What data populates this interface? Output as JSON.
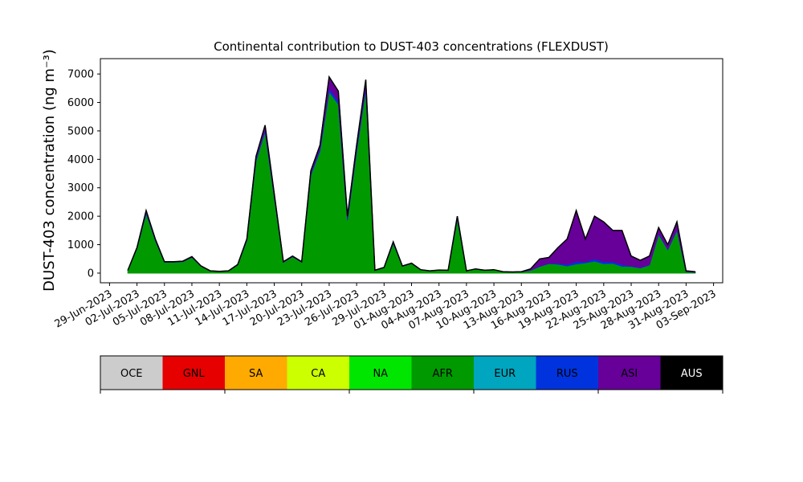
{
  "chart_data": {
    "type": "stacked_area",
    "title": "Continental contribution to DUST-403 concentrations (FLEXDUST)",
    "y_label": "DUST-403 concentration (ng m⁻³)",
    "x": [
      "2023-07-01",
      "2023-07-02",
      "2023-07-03",
      "2023-07-04",
      "2023-07-05",
      "2023-07-06",
      "2023-07-07",
      "2023-07-08",
      "2023-07-09",
      "2023-07-10",
      "2023-07-11",
      "2023-07-12",
      "2023-07-13",
      "2023-07-14",
      "2023-07-15",
      "2023-07-16",
      "2023-07-17",
      "2023-07-18",
      "2023-07-19",
      "2023-07-20",
      "2023-07-21",
      "2023-07-22",
      "2023-07-23",
      "2023-07-24",
      "2023-07-25",
      "2023-07-26",
      "2023-07-27",
      "2023-07-28",
      "2023-07-29",
      "2023-07-30",
      "2023-07-31",
      "2023-08-01",
      "2023-08-02",
      "2023-08-03",
      "2023-08-04",
      "2023-08-05",
      "2023-08-06",
      "2023-08-07",
      "2023-08-08",
      "2023-08-09",
      "2023-08-10",
      "2023-08-11",
      "2023-08-12",
      "2023-08-13",
      "2023-08-14",
      "2023-08-15",
      "2023-08-16",
      "2023-08-17",
      "2023-08-18",
      "2023-08-19",
      "2023-08-20",
      "2023-08-21",
      "2023-08-22",
      "2023-08-23",
      "2023-08-24",
      "2023-08-25",
      "2023-08-26",
      "2023-08-27",
      "2023-08-28",
      "2023-08-29",
      "2023-08-30",
      "2023-08-31",
      "2023-09-01"
    ],
    "xlim": [
      "2023-06-28",
      "2023-09-04"
    ],
    "xticks": [
      {
        "value": "2023-06-29",
        "label": "29-Jun-2023"
      },
      {
        "value": "2023-07-02",
        "label": "02-Jul-2023"
      },
      {
        "value": "2023-07-05",
        "label": "05-Jul-2023"
      },
      {
        "value": "2023-07-08",
        "label": "08-Jul-2023"
      },
      {
        "value": "2023-07-11",
        "label": "11-Jul-2023"
      },
      {
        "value": "2023-07-14",
        "label": "14-Jul-2023"
      },
      {
        "value": "2023-07-17",
        "label": "17-Jul-2023"
      },
      {
        "value": "2023-07-20",
        "label": "20-Jul-2023"
      },
      {
        "value": "2023-07-23",
        "label": "23-Jul-2023"
      },
      {
        "value": "2023-07-26",
        "label": "26-Jul-2023"
      },
      {
        "value": "2023-07-29",
        "label": "29-Jul-2023"
      },
      {
        "value": "2023-08-01",
        "label": "01-Aug-2023"
      },
      {
        "value": "2023-08-04",
        "label": "04-Aug-2023"
      },
      {
        "value": "2023-08-07",
        "label": "07-Aug-2023"
      },
      {
        "value": "2023-08-10",
        "label": "10-Aug-2023"
      },
      {
        "value": "2023-08-13",
        "label": "13-Aug-2023"
      },
      {
        "value": "2023-08-16",
        "label": "16-Aug-2023"
      },
      {
        "value": "2023-08-19",
        "label": "19-Aug-2023"
      },
      {
        "value": "2023-08-22",
        "label": "22-Aug-2023"
      },
      {
        "value": "2023-08-25",
        "label": "25-Aug-2023"
      },
      {
        "value": "2023-08-28",
        "label": "28-Aug-2023"
      },
      {
        "value": "2023-08-31",
        "label": "31-Aug-2023"
      },
      {
        "value": "2023-09-03",
        "label": "03-Sep-2023"
      }
    ],
    "ylim": [
      -340,
      7540
    ],
    "yticks": [
      0,
      1000,
      2000,
      3000,
      4000,
      5000,
      6000,
      7000
    ],
    "series": [
      {
        "name": "OCE",
        "color": "#cccccc",
        "values": [
          0,
          0,
          0,
          0,
          0,
          0,
          0,
          0,
          0,
          0,
          0,
          0,
          0,
          0,
          0,
          0,
          0,
          0,
          0,
          0,
          0,
          0,
          0,
          0,
          0,
          0,
          0,
          0,
          0,
          0,
          0,
          0,
          0,
          0,
          0,
          0,
          0,
          0,
          0,
          0,
          0,
          0,
          0,
          0,
          0,
          0,
          0,
          0,
          0,
          0,
          0,
          0,
          0,
          0,
          0,
          0,
          0,
          0,
          0,
          0,
          0,
          0,
          0
        ]
      },
      {
        "name": "GNL",
        "color": "#e60000",
        "values": [
          0,
          0,
          0,
          0,
          0,
          0,
          0,
          0,
          0,
          0,
          0,
          0,
          0,
          0,
          0,
          0,
          0,
          0,
          0,
          0,
          0,
          0,
          0,
          0,
          0,
          0,
          0,
          0,
          0,
          0,
          0,
          0,
          0,
          0,
          0,
          0,
          0,
          0,
          0,
          0,
          0,
          0,
          0,
          0,
          0,
          0,
          0,
          0,
          0,
          0,
          0,
          0,
          0,
          0,
          0,
          0,
          0,
          0,
          0,
          0,
          0,
          0,
          0
        ]
      },
      {
        "name": "SA",
        "color": "#ffaa00",
        "values": [
          0,
          0,
          0,
          0,
          0,
          0,
          0,
          0,
          0,
          0,
          0,
          0,
          0,
          0,
          0,
          0,
          0,
          0,
          0,
          0,
          0,
          0,
          0,
          0,
          0,
          0,
          0,
          0,
          0,
          0,
          0,
          0,
          0,
          0,
          0,
          0,
          0,
          0,
          0,
          0,
          0,
          0,
          0,
          0,
          0,
          0,
          0,
          0,
          0,
          0,
          0,
          0,
          0,
          0,
          0,
          0,
          0,
          0,
          0,
          0,
          0,
          0,
          0
        ]
      },
      {
        "name": "CA",
        "color": "#ccff00",
        "values": [
          0,
          0,
          0,
          0,
          0,
          0,
          0,
          0,
          0,
          0,
          0,
          0,
          0,
          0,
          0,
          0,
          0,
          0,
          0,
          0,
          0,
          0,
          0,
          0,
          0,
          0,
          0,
          0,
          0,
          0,
          0,
          0,
          0,
          0,
          0,
          0,
          0,
          0,
          0,
          0,
          0,
          0,
          0,
          0,
          0,
          0,
          0,
          0,
          0,
          0,
          0,
          0,
          0,
          0,
          0,
          0,
          0,
          0,
          0,
          0,
          0,
          0,
          0
        ]
      },
      {
        "name": "NA",
        "color": "#00e600",
        "values": [
          0,
          0,
          0,
          0,
          0,
          0,
          0,
          0,
          0,
          0,
          0,
          0,
          0,
          0,
          0,
          0,
          0,
          0,
          0,
          0,
          0,
          0,
          0,
          0,
          0,
          0,
          0,
          0,
          0,
          0,
          0,
          0,
          0,
          0,
          0,
          0,
          0,
          0,
          0,
          0,
          0,
          0,
          0,
          0,
          0,
          0,
          0,
          0,
          0,
          0,
          0,
          0,
          0,
          0,
          0,
          0,
          0,
          0,
          0,
          0,
          0,
          0,
          0
        ]
      },
      {
        "name": "AFR",
        "color": "#009900",
        "values": [
          96,
          865,
          2100,
          1150,
          382,
          382,
          402,
          555,
          240,
          77,
          57,
          77,
          287,
          1150,
          3940,
          4970,
          2680,
          382,
          575,
          382,
          3450,
          4300,
          6380,
          5940,
          1860,
          4270,
          6450,
          95,
          192,
          1050,
          239,
          336,
          115,
          77,
          105,
          95,
          1910,
          77,
          143,
          95,
          115,
          48,
          38,
          48,
          95,
          230,
          330,
          310,
          250,
          320,
          360,
          420,
          330,
          340,
          240,
          230,
          180,
          280,
          1360,
          820,
          1500,
          45,
          27
        ]
      },
      {
        "name": "EUR",
        "color": "#00a5bf",
        "values": [
          0,
          0,
          0,
          0,
          0,
          0,
          0,
          0,
          0,
          0,
          0,
          0,
          0,
          0,
          0,
          0,
          0,
          0,
          0,
          0,
          0,
          0,
          0,
          0,
          0,
          0,
          0,
          0,
          0,
          0,
          0,
          0,
          0,
          0,
          0,
          0,
          0,
          0,
          0,
          0,
          0,
          0,
          0,
          0,
          0,
          0,
          0,
          0,
          0,
          0,
          0,
          0,
          0,
          0,
          0,
          0,
          0,
          0,
          0,
          0,
          0,
          0,
          0
        ]
      },
      {
        "name": "RUS",
        "color": "#0033dd",
        "values": [
          2,
          15,
          40,
          20,
          8,
          8,
          8,
          10,
          5,
          1,
          1,
          1,
          5,
          20,
          60,
          80,
          40,
          8,
          10,
          8,
          60,
          80,
          120,
          110,
          60,
          80,
          100,
          2,
          3,
          20,
          5,
          6,
          2,
          1,
          2,
          2,
          30,
          1,
          3,
          2,
          2,
          1,
          1,
          1,
          5,
          20,
          20,
          40,
          50,
          80,
          40,
          80,
          70,
          60,
          60,
          20,
          20,
          20,
          40,
          30,
          50,
          5,
          3
        ]
      },
      {
        "name": "ASI",
        "color": "#660099",
        "values": [
          2,
          20,
          60,
          30,
          10,
          10,
          10,
          15,
          5,
          2,
          2,
          2,
          8,
          30,
          100,
          150,
          80,
          10,
          15,
          10,
          90,
          120,
          400,
          350,
          80,
          150,
          250,
          3,
          5,
          30,
          6,
          8,
          3,
          2,
          3,
          3,
          60,
          2,
          4,
          3,
          3,
          1,
          1,
          1,
          50,
          250,
          200,
          550,
          900,
          1800,
          800,
          1500,
          1400,
          1100,
          1200,
          350,
          250,
          300,
          200,
          150,
          250,
          30,
          20
        ]
      },
      {
        "name": "AUS",
        "color": "#000000",
        "values": [
          0,
          0,
          0,
          0,
          0,
          0,
          0,
          0,
          0,
          0,
          0,
          0,
          0,
          0,
          0,
          0,
          0,
          0,
          0,
          0,
          0,
          0,
          0,
          0,
          0,
          0,
          0,
          0,
          0,
          0,
          0,
          0,
          0,
          0,
          0,
          0,
          0,
          0,
          0,
          0,
          0,
          0,
          0,
          0,
          0,
          0,
          0,
          0,
          0,
          0,
          0,
          0,
          0,
          0,
          0,
          0,
          0,
          0,
          0,
          0,
          0,
          0,
          0
        ]
      }
    ]
  }
}
